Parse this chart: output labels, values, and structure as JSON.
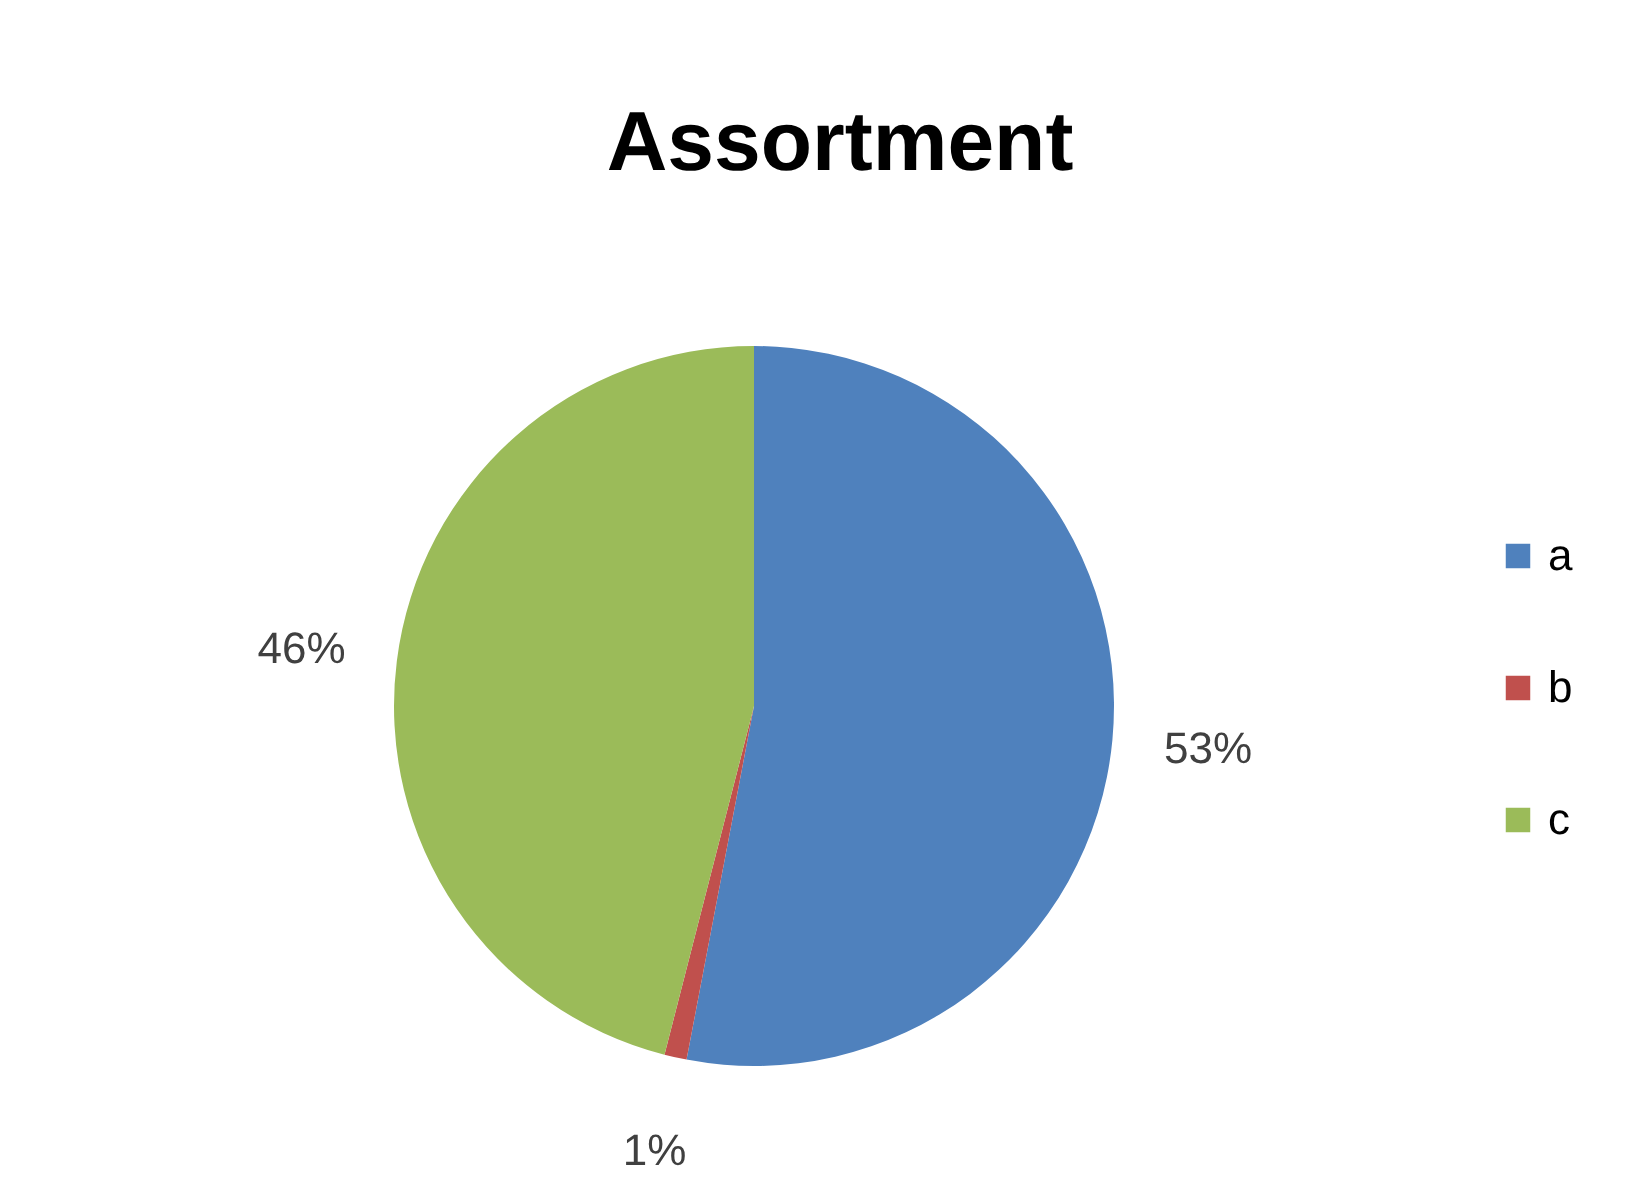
{
  "chart_data": {
    "type": "pie",
    "title": "Assortment",
    "categories": [
      "a",
      "b",
      "c"
    ],
    "values": [
      53,
      1,
      46
    ],
    "colors": [
      "#4f81bd",
      "#c0504d",
      "#9bbb59"
    ],
    "value_labels": [
      "53%",
      "1%",
      "46%"
    ],
    "legend": "right"
  }
}
